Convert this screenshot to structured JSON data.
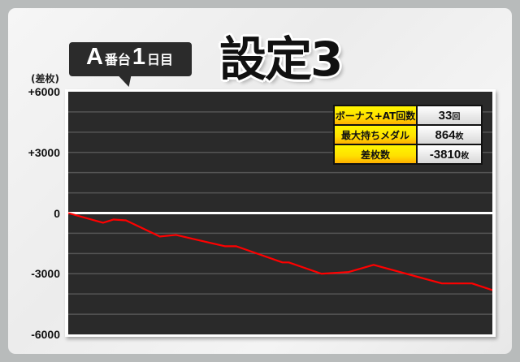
{
  "header": {
    "machine_letter": "A",
    "machine_suffix": "番台",
    "day_number": "1",
    "day_suffix": "日目",
    "title": "設定3"
  },
  "stats": [
    {
      "label": "ボーナス+AT回数",
      "value": "33",
      "unit": "回"
    },
    {
      "label": "最大持ちメダル",
      "value": "864",
      "unit": "枚"
    },
    {
      "label": "差枚数",
      "value": "-3810",
      "unit": "枚"
    }
  ],
  "chart_data": {
    "type": "line",
    "ylabel": "(差枚)",
    "ylim": [
      -6000,
      6000
    ],
    "yticks": [
      6000,
      3000,
      0,
      -3000,
      -6000
    ],
    "ytick_labels": [
      "+6000",
      "+3000",
      "0",
      "-3000",
      "-6000"
    ],
    "grid": true,
    "grid_step": 1000,
    "xlim": [
      0,
      100
    ],
    "line_color": "#ff0000",
    "zero_line_color": "#ffffff",
    "background": "#2a2a2a",
    "series": [
      {
        "x": [
          0,
          8.2,
          10.7,
          13.6,
          21.6,
          25.4,
          36.9,
          39.6,
          50.5,
          52.0,
          59.7,
          66.0,
          72.0,
          88.1,
          95.2,
          100
        ],
        "values": [
          0,
          -480,
          -320,
          -360,
          -1160,
          -1080,
          -1640,
          -1640,
          -2440,
          -2440,
          -3000,
          -2920,
          -2560,
          -3480,
          -3480,
          -3810
        ]
      }
    ]
  }
}
